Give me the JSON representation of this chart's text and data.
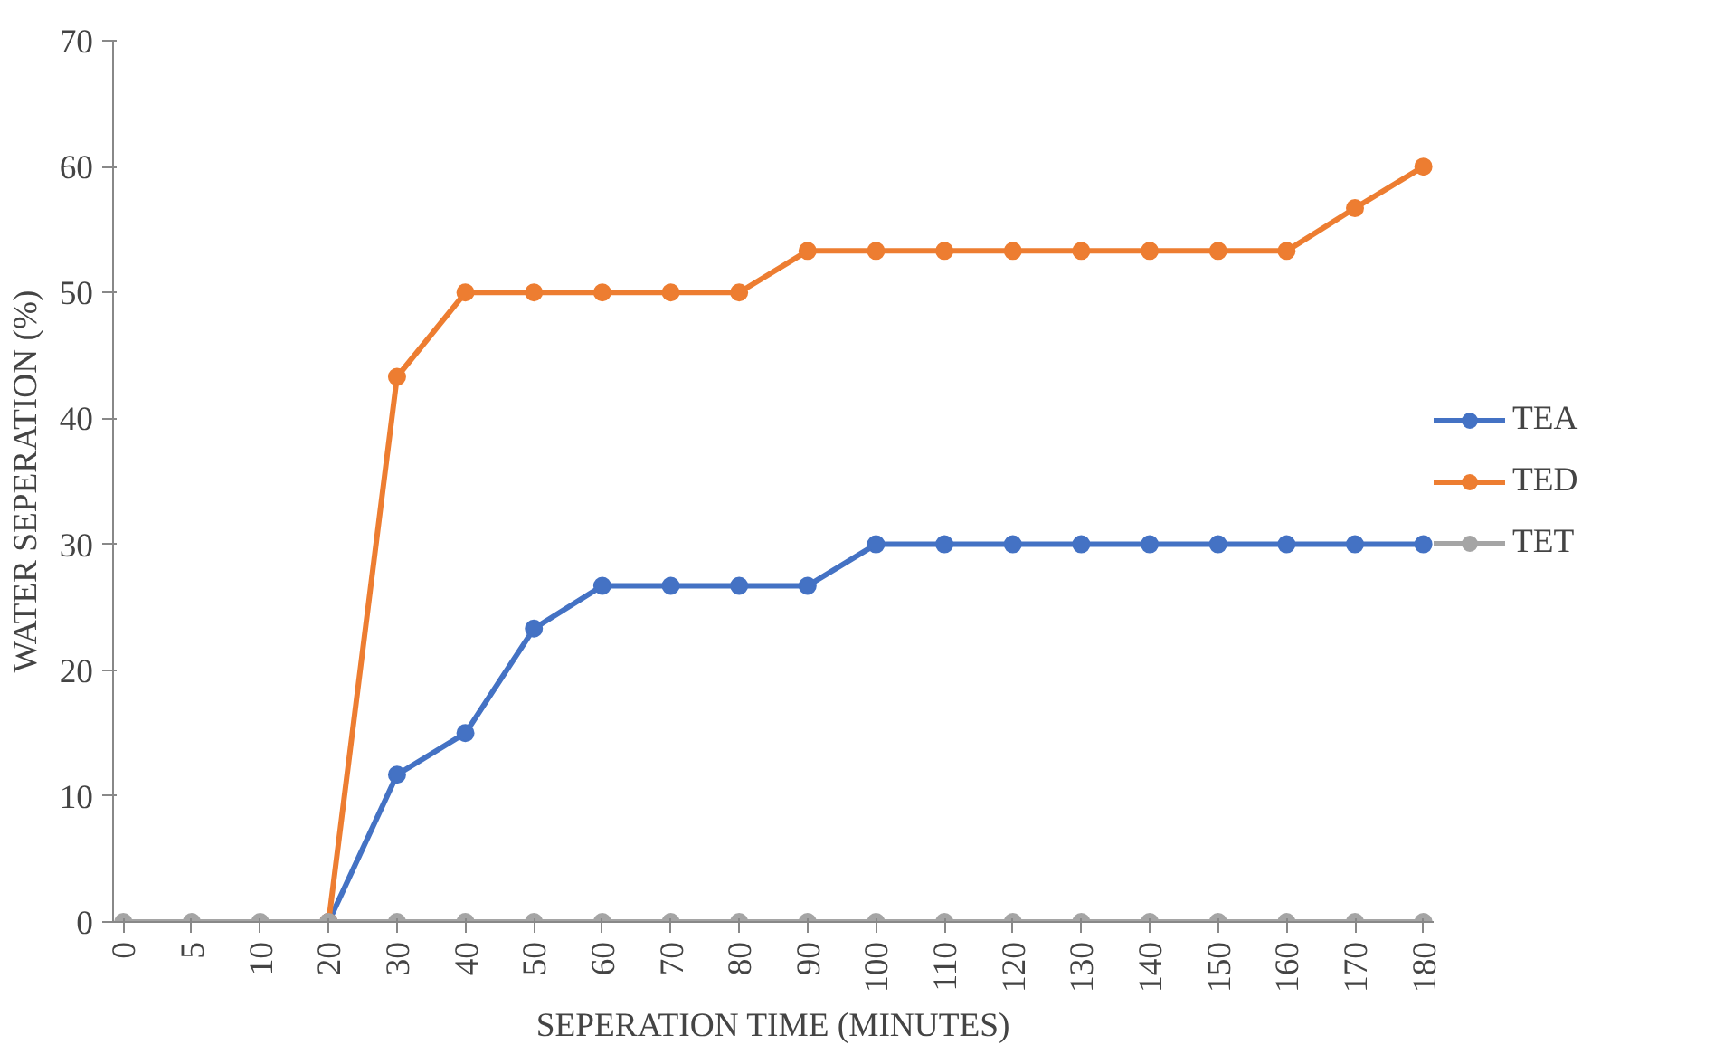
{
  "chart_data": {
    "type": "line",
    "xlabel": "SEPERATION TIME (MINUTES)",
    "ylabel": "WATER SEPERATION (%)",
    "categories": [
      "0",
      "5",
      "10",
      "20",
      "30",
      "40",
      "50",
      "60",
      "70",
      "80",
      "90",
      "100",
      "110",
      "120",
      "130",
      "140",
      "150",
      "160",
      "170",
      "180"
    ],
    "series": [
      {
        "name": "TEA",
        "color": "#4472c4",
        "values": [
          null,
          null,
          null,
          0,
          11.7,
          15,
          23.3,
          26.7,
          26.7,
          26.7,
          26.7,
          30,
          30,
          30,
          30,
          30,
          30,
          30,
          30,
          30
        ]
      },
      {
        "name": "TED",
        "color": "#ed7d31",
        "values": [
          null,
          null,
          null,
          0,
          43.3,
          50,
          50,
          50,
          50,
          50,
          53.3,
          53.3,
          53.3,
          53.3,
          53.3,
          53.3,
          53.3,
          53.3,
          56.7,
          60
        ]
      },
      {
        "name": "TET",
        "color": "#a5a5a5",
        "values": [
          0,
          0,
          0,
          0,
          0,
          0,
          0,
          0,
          0,
          0,
          0,
          0,
          0,
          0,
          0,
          0,
          0,
          0,
          0,
          0
        ]
      }
    ],
    "ylim": [
      0,
      70
    ],
    "yticks": [
      0,
      10,
      20,
      30,
      40,
      50,
      60,
      70
    ],
    "grid": false,
    "legend": "right",
    "marker": "circle",
    "line_style": "solid"
  }
}
